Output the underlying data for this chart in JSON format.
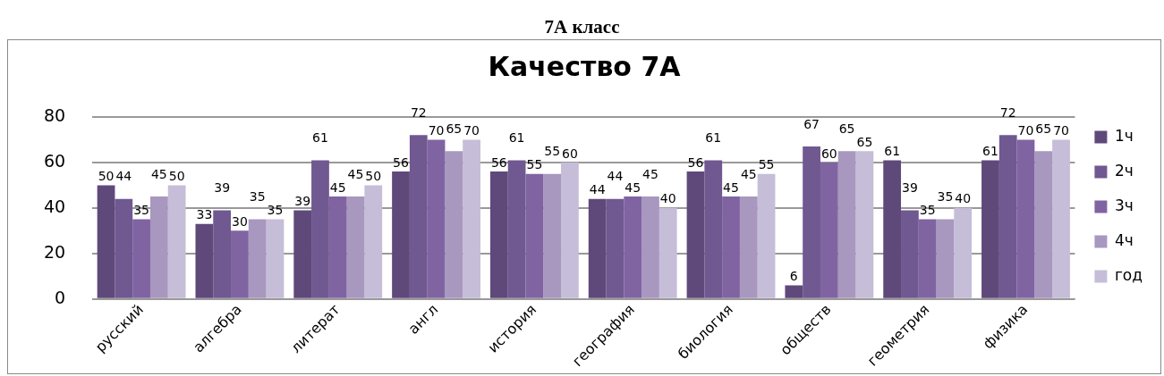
{
  "chart_data": {
    "type": "bar",
    "title": "Качество 7А",
    "subtitle": "7А класс",
    "categories": [
      "русский",
      "алгебра",
      "литерат",
      "англ",
      "история",
      "география",
      "биология",
      "обществ",
      "геометрия",
      "физика"
    ],
    "series": [
      {
        "name": "1ч",
        "color": "#5f497a",
        "values": [
          50,
          33,
          39,
          56,
          56,
          44,
          56,
          6,
          61,
          61
        ]
      },
      {
        "name": "2ч",
        "color": "#705891",
        "values": [
          44,
          39,
          61,
          72,
          61,
          44,
          61,
          67,
          39,
          72
        ]
      },
      {
        "name": "3ч",
        "color": "#8064a2",
        "values": [
          35,
          30,
          45,
          70,
          55,
          45,
          45,
          60,
          35,
          70
        ]
      },
      {
        "name": "4ч",
        "color": "#a897be",
        "values": [
          45,
          35,
          45,
          65,
          55,
          45,
          45,
          65,
          35,
          65
        ]
      },
      {
        "name": "год",
        "color": "#c6bdd8",
        "values": [
          50,
          35,
          50,
          70,
          60,
          40,
          55,
          65,
          40,
          70
        ]
      }
    ],
    "ylim": [
      0,
      80
    ],
    "yticks": [
      0,
      20,
      40,
      60,
      80
    ],
    "grid": "y",
    "legend": "right",
    "data_labels": true
  }
}
